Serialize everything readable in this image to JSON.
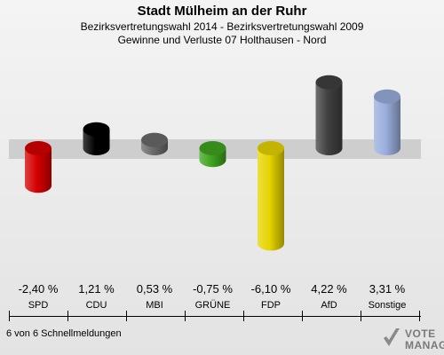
{
  "header": {
    "title": "Stadt Mülheim an der Ruhr",
    "subtitle": "Bezirksvertretungswahl 2014 - Bezirksvertretungswahl 2009",
    "subtitle2": "Gewinne und Verluste 07 Holthausen - Nord"
  },
  "footer": {
    "text": "6 von 6 Schnellmeldungen"
  },
  "logo": {
    "line1": "VOTE",
    "line2": "MANAGER"
  },
  "chart_data": {
    "type": "bar",
    "categories": [
      "SPD",
      "CDU",
      "MBI",
      "GRÜNE",
      "FDP",
      "AfD",
      "Sonstige"
    ],
    "values": [
      -2.4,
      1.21,
      0.53,
      -0.75,
      -6.1,
      4.22,
      3.31
    ],
    "value_labels": [
      "-2,40 %",
      "1,21 %",
      "0,53 %",
      "-0,75 %",
      "-6,10 %",
      "4,22 %",
      "3,31 %"
    ],
    "colors": [
      "#d40000",
      "#000000",
      "#6a6a6a",
      "#3fa320",
      "#e5d400",
      "#404040",
      "#9aaedc"
    ],
    "title": "Stadt Mülheim an der Ruhr",
    "xlabel": "",
    "ylabel": "",
    "ylim": [
      -6.1,
      4.22
    ],
    "grid": false,
    "legend": "none"
  }
}
